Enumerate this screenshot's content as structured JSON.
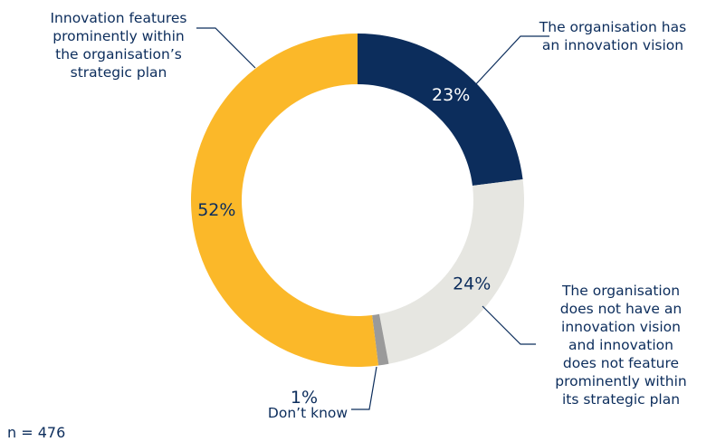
{
  "chart_data": {
    "type": "pie",
    "variant": "donut",
    "start_angle_deg": 0,
    "direction": "clockwise",
    "slices": [
      {
        "name": "The organisation has an innovation vision",
        "label_lines": [
          "The organisation has",
          "an innovation vision"
        ],
        "value": 23,
        "value_label": "23%",
        "color": "#0c2d5c",
        "value_label_color": "#ffffff"
      },
      {
        "name": "The organisation does not have an innovation vision and innovation does not feature prominently within its strategic plan",
        "label_lines": [
          "The organisation",
          "does not have an",
          "innovation vision",
          "and innovation",
          "does not feature",
          "prominently within",
          "its strategic plan"
        ],
        "value": 24,
        "value_label": "24%",
        "color": "#e6e6e1",
        "value_label_color": "#0c2d5c"
      },
      {
        "name": "Don’t know",
        "label_lines": [
          "Don’t know"
        ],
        "value": 1,
        "value_label": "1%",
        "color": "#9a9a9a",
        "value_label_color": "#0c2d5c"
      },
      {
        "name": "Innovation features prominently within the organisation’s strategic plan",
        "label_lines": [
          "Innovation features",
          "prominently within",
          "the organisation’s",
          "strategic plan"
        ],
        "value": 52,
        "value_label": "52%",
        "color": "#fbb829",
        "value_label_color": "#0c2d5c"
      }
    ]
  },
  "footnote": "n = 476"
}
